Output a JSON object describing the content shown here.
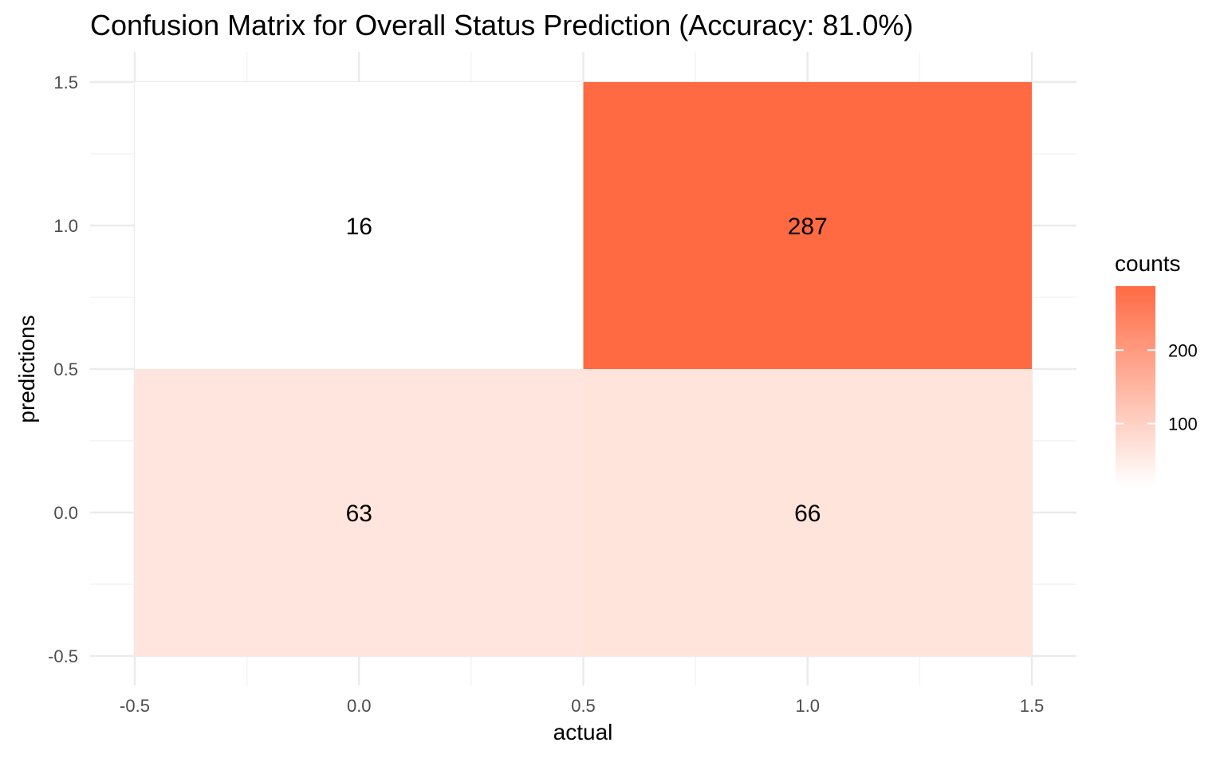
{
  "chart_data": {
    "type": "heatmap",
    "title": "Confusion Matrix for Overall Status Prediction (Accuracy: 81.0%)",
    "xlabel": "actual",
    "ylabel": "predictions",
    "xlim": [
      -0.5,
      1.5
    ],
    "ylim": [
      -0.5,
      1.5
    ],
    "x_ticks": [
      "-0.5",
      "0.0",
      "0.5",
      "1.0",
      "1.5"
    ],
    "y_ticks": [
      "-0.5",
      "0.0",
      "0.5",
      "1.0",
      "1.5"
    ],
    "cells": [
      {
        "actual": 0,
        "prediction": 1,
        "count": 16
      },
      {
        "actual": 1,
        "prediction": 1,
        "count": 287
      },
      {
        "actual": 0,
        "prediction": 0,
        "count": 63
      },
      {
        "actual": 1,
        "prediction": 0,
        "count": 66
      }
    ],
    "legend": {
      "title": "counts",
      "position": "right",
      "ticks": [
        100,
        200
      ],
      "low_color": "#ffffff",
      "high_color": "#ff6a43"
    },
    "grid": true,
    "colors": {
      "cell_low": "#ffffff",
      "cell_high": "#ff6a43",
      "grid_major": "#ebebeb",
      "grid_minor": "#f4f4f4"
    }
  }
}
